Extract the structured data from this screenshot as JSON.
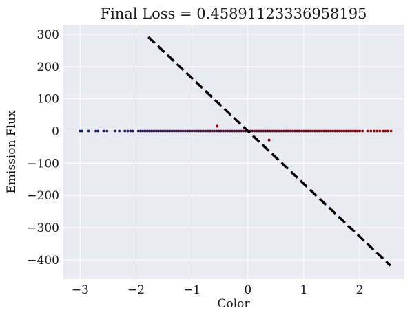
{
  "chart_data": {
    "type": "scatter",
    "title": "Final Loss = 0.45891123336958195",
    "xlabel": "Color",
    "ylabel": "Emission Flux",
    "xlim": [
      -3.3,
      2.8
    ],
    "ylim": [
      -460,
      330
    ],
    "xticks": [
      -3,
      -2,
      -1,
      0,
      1,
      2
    ],
    "xtick_labels": [
      "−3",
      "−2",
      "−1",
      "0",
      "1",
      "2"
    ],
    "yticks": [
      300,
      200,
      100,
      0,
      -100,
      -200,
      -300,
      -400
    ],
    "ytick_labels": [
      "300",
      "200",
      "100",
      "0",
      "−100",
      "−200",
      "−300",
      "−400"
    ],
    "grid": true,
    "background_color": "#eaeaf2",
    "grid_color": "#ffffff",
    "fit_line": {
      "x": [
        -1.78,
        2.55
      ],
      "y": [
        292,
        -418
      ],
      "color": "#000000",
      "style": "dashed"
    },
    "outliers": [
      {
        "x": -0.55,
        "y": 15,
        "color": "#8b0000"
      },
      {
        "x": 0.38,
        "y": -28,
        "color": "#8b0000"
      }
    ],
    "scatter_points": {
      "color_scale": [
        "#0a1a5c",
        "#8b0000"
      ],
      "x": [
        -3.0,
        -2.97,
        -2.85,
        -2.72,
        -2.68,
        -2.58,
        -2.52,
        -2.38,
        -2.3,
        -2.2,
        -2.15,
        -2.1,
        -2.06,
        -1.96,
        -1.92,
        -1.88,
        -1.84,
        -1.8,
        -1.76,
        -1.72,
        -1.68,
        -1.64,
        -1.6,
        -1.56,
        -1.52,
        -1.48,
        -1.44,
        -1.4,
        -1.36,
        -1.32,
        -1.28,
        -1.24,
        -1.2,
        -1.16,
        -1.12,
        -1.08,
        -1.04,
        -1.0,
        -0.96,
        -0.92,
        -0.88,
        -0.84,
        -0.8,
        -0.76,
        -0.72,
        -0.68,
        -0.64,
        -0.6,
        -0.56,
        -0.52,
        -0.48,
        -0.44,
        -0.4,
        -0.36,
        -0.32,
        -0.28,
        -0.24,
        -0.2,
        -0.16,
        -0.12,
        -0.08,
        -0.04,
        0.0,
        0.04,
        0.08,
        0.12,
        0.16,
        0.2,
        0.24,
        0.28,
        0.32,
        0.36,
        0.4,
        0.44,
        0.48,
        0.52,
        0.56,
        0.6,
        0.64,
        0.68,
        0.72,
        0.76,
        0.8,
        0.84,
        0.88,
        0.92,
        0.96,
        1.0,
        1.04,
        1.08,
        1.12,
        1.16,
        1.2,
        1.24,
        1.28,
        1.32,
        1.36,
        1.4,
        1.44,
        1.48,
        1.52,
        1.56,
        1.6,
        1.64,
        1.68,
        1.72,
        1.76,
        1.8,
        1.84,
        1.88,
        1.92,
        1.96,
        2.0,
        2.05,
        2.14,
        2.2,
        2.26,
        2.31,
        2.36,
        2.42,
        2.46,
        2.5,
        2.56
      ],
      "y": [
        0,
        0,
        0,
        0,
        0,
        0,
        0,
        0,
        0,
        0,
        0,
        0,
        0,
        0,
        0,
        0,
        0,
        0,
        0,
        0,
        0,
        0,
        0,
        0,
        0,
        0,
        0,
        0,
        0,
        0,
        0,
        0,
        0,
        0,
        0,
        0,
        0,
        0,
        0,
        0,
        0,
        0,
        0,
        0,
        0,
        0,
        0,
        0,
        0,
        0,
        0,
        0,
        0,
        0,
        0,
        0,
        0,
        0,
        0,
        0,
        0,
        0,
        0,
        0,
        0,
        0,
        0,
        0,
        0,
        0,
        0,
        0,
        0,
        0,
        0,
        0,
        0,
        0,
        0,
        0,
        0,
        0,
        0,
        0,
        0,
        0,
        0,
        0,
        0,
        0,
        0,
        0,
        0,
        0,
        0,
        0,
        0,
        0,
        0,
        0,
        0,
        0,
        0,
        0,
        0,
        0,
        0,
        0,
        0,
        0,
        0,
        0,
        0,
        0,
        0,
        0,
        0,
        0,
        0,
        0,
        0,
        0,
        0
      ]
    }
  }
}
